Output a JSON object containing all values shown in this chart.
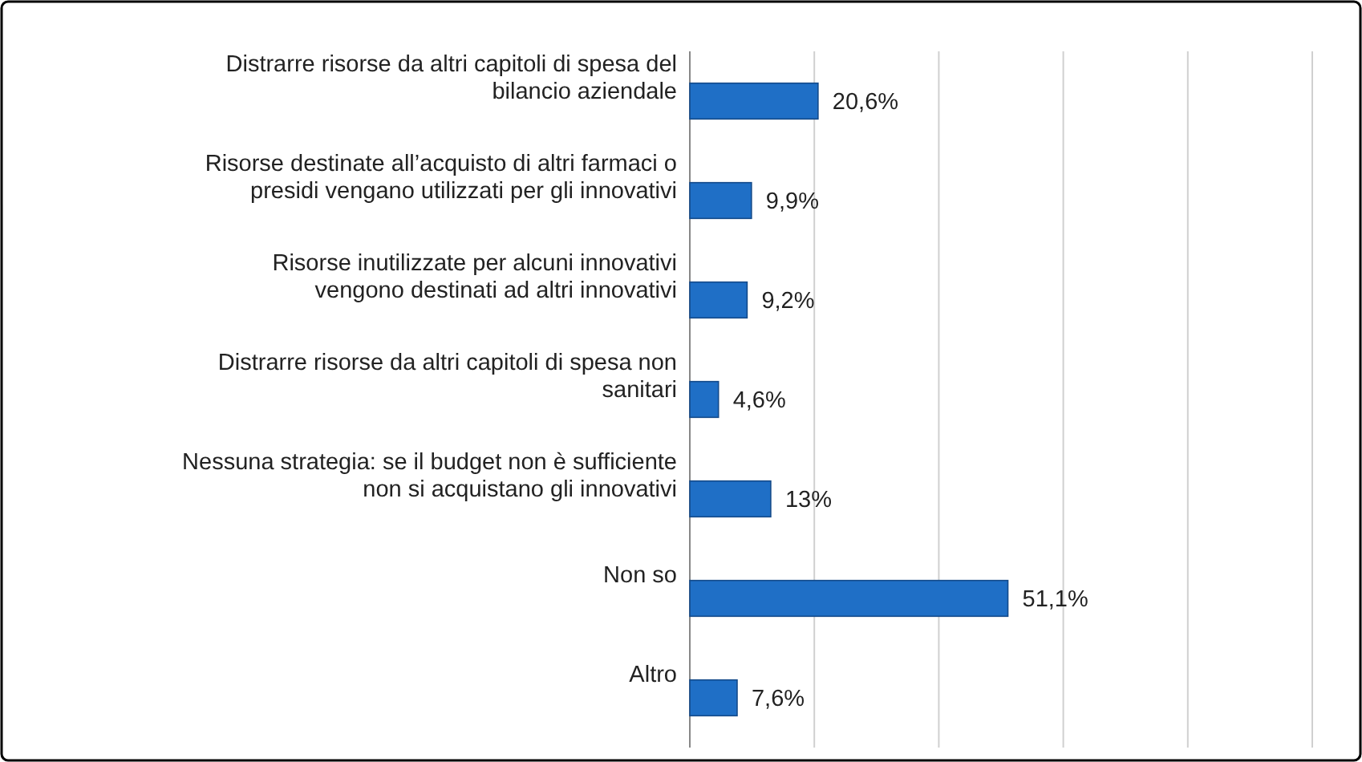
{
  "chart_data": {
    "type": "bar",
    "orientation": "horizontal",
    "categories": [
      "Distrarre risorse da altri capitoli di spesa del bilancio aziendale",
      "Risorse destinate all’acquisto di altri farmaci o presidi vengano utilizzati per gli innovativi",
      "Risorse inutilizzate per alcuni innovativi vengono destinati ad altri innovativi",
      "Distrarre risorse da altri capitoli di spesa non sanitari",
      "Nessuna strategia: se il budget non è sufficiente non si acquistano gli innovativi",
      "Non so",
      "Altro"
    ],
    "values": [
      20.6,
      9.9,
      9.2,
      4.6,
      13,
      51.1,
      7.6
    ],
    "value_labels": [
      "20,6%",
      "9,9%",
      "9,2%",
      "4,6%",
      "13%",
      "51,1%",
      "7,6%"
    ],
    "color": "#1f6fc6",
    "xlim": [
      0,
      100
    ],
    "xticks": [
      {
        "value": 0,
        "label": null
      },
      {
        "value": 20,
        "label": null
      },
      {
        "value": 40,
        "label": null
      },
      {
        "value": 60,
        "label": null
      },
      {
        "value": 80,
        "label": null
      },
      {
        "value": 100,
        "label": null
      }
    ],
    "grid": "x"
  }
}
